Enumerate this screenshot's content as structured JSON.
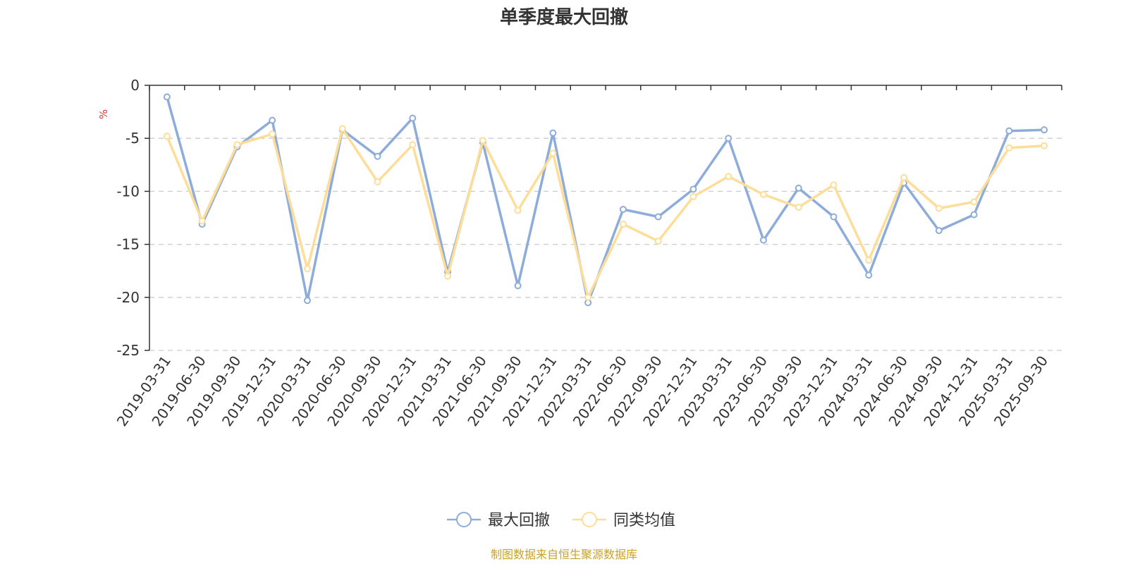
{
  "chart_data": {
    "type": "line",
    "title": "单季度最大回撤",
    "ylabel": "%",
    "ylim": [
      -25,
      0
    ],
    "yticks": [
      0,
      -5,
      -10,
      -15,
      -20,
      -25
    ],
    "grid": "horizontal dashed",
    "legend_position": "bottom",
    "categories": [
      "2019-03-31",
      "2019-06-30",
      "2019-09-30",
      "2019-12-31",
      "2020-03-31",
      "2020-06-30",
      "2020-09-30",
      "2020-12-31",
      "2021-03-31",
      "2021-06-30",
      "2021-09-30",
      "2021-12-31",
      "2022-03-31",
      "2022-06-30",
      "2022-09-30",
      "2022-12-31",
      "2023-03-31",
      "2023-06-30",
      "2023-09-30",
      "2023-12-31",
      "2024-03-31",
      "2024-06-30",
      "2024-09-30",
      "2024-12-31",
      "2025-03-31",
      "2025-09-30"
    ],
    "series": [
      {
        "name": "最大回撤",
        "color": "#8eacda",
        "values": [
          -1.1,
          -13.1,
          -5.8,
          -3.3,
          -20.3,
          -4.2,
          -6.7,
          -3.1,
          -17.6,
          -5.4,
          -18.9,
          -4.5,
          -20.5,
          -11.7,
          -12.4,
          -9.8,
          -5.0,
          -14.6,
          -9.7,
          -12.4,
          -17.9,
          -9.2,
          -13.7,
          -12.2,
          -4.3,
          -4.2
        ]
      },
      {
        "name": "同类均值",
        "color": "#fddd98",
        "values": [
          -4.8,
          -12.8,
          -5.6,
          -4.6,
          -17.3,
          -4.1,
          -9.1,
          -5.6,
          -18.0,
          -5.2,
          -11.8,
          -6.4,
          -20.0,
          -13.1,
          -14.7,
          -10.5,
          -8.6,
          -10.3,
          -11.5,
          -9.4,
          -16.5,
          -8.7,
          -11.6,
          -11.0,
          -5.9,
          -5.7
        ]
      }
    ]
  },
  "source_text": "制图数据来自恒生聚源数据库",
  "source_color": "#c9a227",
  "unit_color": "#e8322e"
}
